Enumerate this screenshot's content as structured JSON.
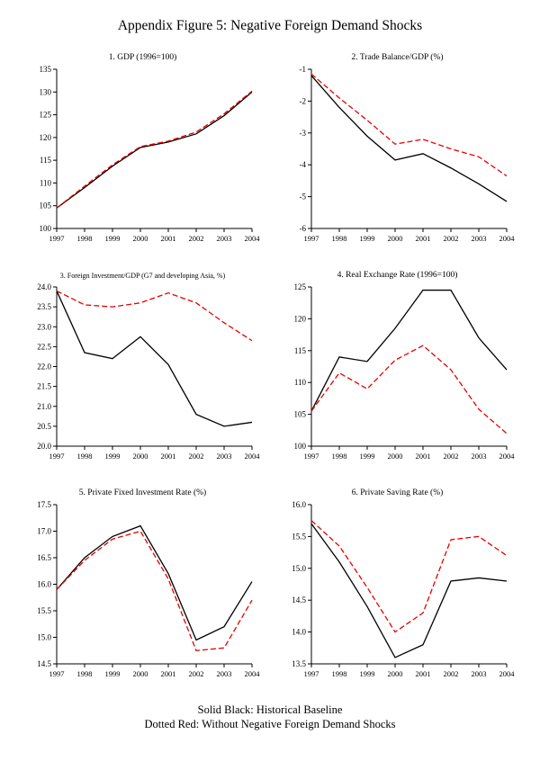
{
  "page_title": "Appendix Figure 5: Negative Foreign Demand Shocks",
  "footer": {
    "line1": "Solid Black: Historical Baseline",
    "line2": "Dotted Red: Without Negative Foreign Demand Shocks"
  },
  "colors": {
    "baseline": "#000000",
    "counterfactual": "#e60000"
  },
  "chart_data": [
    {
      "type": "line",
      "title": "1. GDP (1996=100)",
      "x": [
        1997,
        1998,
        1999,
        2000,
        2001,
        2002,
        2003,
        2004
      ],
      "ylim": [
        100,
        135
      ],
      "y_tick_step": 5,
      "y_decimals": 0,
      "series": [
        {
          "name": "Historical Baseline",
          "style": "solid-black",
          "values": [
            104.5,
            109.0,
            113.7,
            117.8,
            119.0,
            120.8,
            124.8,
            130.0
          ]
        },
        {
          "name": "Without Negative Foreign Demand Shocks",
          "style": "dashed-red",
          "values": [
            104.5,
            109.3,
            114.0,
            118.0,
            119.2,
            121.2,
            125.2,
            130.2
          ]
        }
      ]
    },
    {
      "type": "line",
      "title": "2. Trade Balance/GDP (%)",
      "x": [
        1997,
        1998,
        1999,
        2000,
        2001,
        2002,
        2003,
        2004
      ],
      "ylim": [
        -6,
        -1
      ],
      "y_tick_step": 1,
      "y_decimals": 0,
      "series": [
        {
          "name": "Historical Baseline",
          "style": "solid-black",
          "values": [
            -1.2,
            -2.2,
            -3.1,
            -3.85,
            -3.65,
            -4.1,
            -4.6,
            -5.15
          ]
        },
        {
          "name": "Without Negative Foreign Demand Shocks",
          "style": "dashed-red",
          "values": [
            -1.15,
            -1.9,
            -2.6,
            -3.35,
            -3.2,
            -3.5,
            -3.75,
            -4.35
          ]
        }
      ]
    },
    {
      "type": "line",
      "title": "3. Foreign Investment/GDP (G7 and developing Asia, %)",
      "x": [
        1997,
        1998,
        1999,
        2000,
        2001,
        2002,
        2003,
        2004
      ],
      "ylim": [
        20.0,
        24.0
      ],
      "y_tick_step": 0.5,
      "y_decimals": 1,
      "series": [
        {
          "name": "Historical Baseline",
          "style": "solid-black",
          "values": [
            23.9,
            22.35,
            22.2,
            22.75,
            22.05,
            20.8,
            20.5,
            20.6
          ]
        },
        {
          "name": "Without Negative Foreign Demand Shocks",
          "style": "dashed-red",
          "values": [
            23.9,
            23.55,
            23.5,
            23.6,
            23.85,
            23.6,
            23.1,
            22.65
          ]
        }
      ]
    },
    {
      "type": "line",
      "title": "4. Real Exchange Rate (1996=100)",
      "x": [
        1997,
        1998,
        1999,
        2000,
        2001,
        2002,
        2003,
        2004
      ],
      "ylim": [
        100,
        125
      ],
      "y_tick_step": 5,
      "y_decimals": 0,
      "series": [
        {
          "name": "Historical Baseline",
          "style": "solid-black",
          "values": [
            105.5,
            114.0,
            113.3,
            118.5,
            124.5,
            124.5,
            117.0,
            112.0
          ]
        },
        {
          "name": "Without Negative Foreign Demand Shocks",
          "style": "dashed-red",
          "values": [
            105.5,
            111.5,
            109.0,
            113.5,
            115.8,
            112.0,
            105.8,
            102.0
          ]
        }
      ]
    },
    {
      "type": "line",
      "title": "5. Private Fixed Investment Rate (%)",
      "x": [
        1997,
        1998,
        1999,
        2000,
        2001,
        2002,
        2003,
        2004
      ],
      "ylim": [
        14.5,
        17.5
      ],
      "y_tick_step": 0.5,
      "y_decimals": 1,
      "series": [
        {
          "name": "Historical Baseline",
          "style": "solid-black",
          "values": [
            15.9,
            16.5,
            16.9,
            17.1,
            16.2,
            14.95,
            15.2,
            16.05
          ]
        },
        {
          "name": "Without Negative Foreign Demand Shocks",
          "style": "dashed-red",
          "values": [
            15.9,
            16.45,
            16.85,
            17.0,
            16.1,
            14.75,
            14.8,
            15.7
          ]
        }
      ]
    },
    {
      "type": "line",
      "title": "6. Private Saving Rate (%)",
      "x": [
        1997,
        1998,
        1999,
        2000,
        2001,
        2002,
        2003,
        2004
      ],
      "ylim": [
        13.5,
        16.0
      ],
      "y_tick_step": 0.5,
      "y_decimals": 1,
      "series": [
        {
          "name": "Historical Baseline",
          "style": "solid-black",
          "values": [
            15.7,
            15.1,
            14.4,
            13.6,
            13.8,
            14.8,
            14.85,
            14.8
          ]
        },
        {
          "name": "Without Negative Foreign Demand Shocks",
          "style": "dashed-red",
          "values": [
            15.75,
            15.35,
            14.7,
            14.0,
            14.3,
            15.45,
            15.5,
            15.2
          ]
        }
      ]
    }
  ]
}
